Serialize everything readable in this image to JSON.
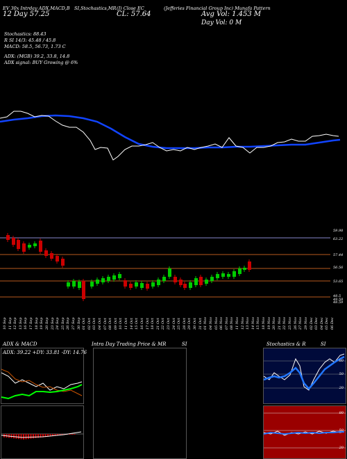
{
  "header": {
    "top_left_1": "EV 30x Intrday ADX,MACD,B",
    "top_left_2": "12 Day 57.25",
    "stoch_title": "SI,Stochastics,MR",
    "cl_prefix": "(J) Close EC",
    "close": "CL: 57.64",
    "company": "(Jefferies Financial Group Inc) Munafa Pattern",
    "avg_vol": "Avg Vol: 1.453 M",
    "day_vol": "Day Vol: 0  M"
  },
  "indicators": {
    "stochastics": "Stochastics: 88.43",
    "rsi": "R                    SI 14/3: 45.48 / 45.8",
    "macd": "MACD: 58.5, 56.73, 1.73 C",
    "adx": "ADX:                     (MGB) 39.2, 33.8, 14.8",
    "adx_signal": "ADX  signal:                             BUY Growing @ 6%"
  },
  "price_axis": [
    "59.98",
    "63.22",
    "57.44",
    "56.56",
    "53.65",
    "48.5",
    "49.59",
    "48.59"
  ],
  "dates": [
    "10 Sep",
    "11 Sep",
    "12 Sep",
    "13 Sep",
    "16 Sep",
    "17 Sep",
    "18 Sep",
    "19 Sep",
    "20 Sep",
    "23 Sep",
    "24 Sep",
    "25 Sep",
    "26 Sep",
    "27 Sep",
    "30 Sep",
    "01 Oct",
    "02 Oct",
    "03 Oct",
    "04 Oct",
    "07 Oct",
    "08 Oct",
    "09 Oct",
    "10 Oct",
    "11 Oct",
    "14 Oct",
    "15 Oct",
    "16 Oct",
    "17 Oct",
    "18 Oct",
    "21 Oct",
    "22 Oct",
    "23 Oct",
    "24 Oct",
    "25 Oct",
    "28 Oct",
    "29 Oct",
    "30 Oct",
    "31 Oct",
    "01 Nov",
    "04 Nov",
    "05 Nov",
    "06 Nov",
    "07 Nov",
    "08 Nov",
    "11 Nov",
    "12 Nov",
    "13 Nov",
    "14 Nov",
    "15 Nov",
    "18 Nov",
    "19 Nov",
    "20 Nov",
    "21 Nov",
    "22 Nov",
    "25 Nov",
    "26 Nov",
    "27 Nov",
    "29 Nov",
    "02 Dec",
    "03 Dec",
    "04 Dec",
    "05 Dec",
    "06 Dec"
  ],
  "panels": {
    "adx_macd": {
      "title": "ADX  & MACD",
      "values": "ADX: 39.22  +DY: 33.81 -DY: 14.76"
    },
    "intraday": {
      "title": "Intra Day Trading Price  & MR",
      "suffix": "SI"
    },
    "stoch_rsi": {
      "title": "Stochastics & R",
      "suffix": "SI",
      "labels_top": [
        "80",
        "50",
        "20"
      ],
      "labels_bottom": [
        "80",
        "50",
        "20"
      ]
    }
  },
  "colors": {
    "up": "#00cc00",
    "down": "#cc0000",
    "ma": "#1144ff",
    "price": "#ffffff",
    "rsi_bg": "#9a0000",
    "stoch_bg": "#000a3a"
  }
}
